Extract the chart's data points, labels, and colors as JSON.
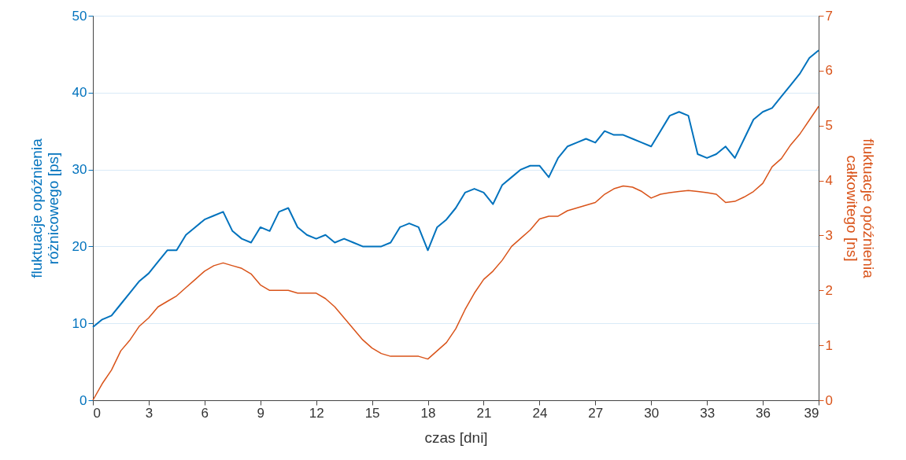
{
  "chart_data": {
    "type": "line",
    "xlabel": "czas [dni]",
    "ylabel": "fluktuacje opóźnienia\nróżnicowego [ps]",
    "y2label": "fluktuacje opóźnienia\ncałkowitego [ns]",
    "x": [
      0,
      0.5,
      1,
      1.5,
      2,
      2.5,
      3,
      3.5,
      4,
      4.5,
      5,
      5.5,
      6,
      6.5,
      7,
      7.5,
      8,
      8.5,
      9,
      9.5,
      10,
      10.5,
      11,
      11.5,
      12,
      12.5,
      13,
      13.5,
      14,
      14.5,
      15,
      15.5,
      16,
      16.5,
      17,
      17.5,
      18,
      18.5,
      19,
      19.5,
      20,
      20.5,
      21,
      21.5,
      22,
      22.5,
      23,
      23.5,
      24,
      24.5,
      25,
      25.5,
      26,
      26.5,
      27,
      27.5,
      28,
      28.5,
      29,
      29.5,
      30,
      30.5,
      31,
      31.5,
      32,
      32.5,
      33,
      33.5,
      34,
      34.5,
      35,
      35.5,
      36,
      36.5,
      37,
      37.5,
      38,
      38.5,
      39
    ],
    "series": [
      {
        "color": "#0072bd",
        "axis": "y",
        "values": [
          9.5,
          10.5,
          11,
          12.5,
          14,
          15.5,
          16.5,
          18,
          19.5,
          19.5,
          21.5,
          22.5,
          23.5,
          24,
          24.5,
          22,
          21,
          20.5,
          22.5,
          22,
          24.5,
          25,
          22.5,
          21.5,
          21,
          21.5,
          20.5,
          21,
          20.5,
          20,
          20,
          20,
          20.5,
          22.5,
          23,
          22.5,
          19.5,
          22.5,
          23.5,
          25,
          27,
          27.5,
          27,
          25.5,
          28,
          29,
          30,
          30.5,
          30.5,
          29,
          31.5,
          33,
          33.5,
          34,
          33.5,
          35,
          34.5,
          34.5,
          34,
          33.5,
          33,
          35,
          37,
          37.5,
          37,
          32,
          31.5,
          32,
          33,
          31.5,
          34,
          36.5,
          37.5,
          38,
          39.5,
          41,
          42.5,
          44.5,
          45.5
        ]
      },
      {
        "color": "#d95319",
        "axis": "y2",
        "values": [
          0,
          0.3,
          0.55,
          0.9,
          1.1,
          1.35,
          1.5,
          1.7,
          1.8,
          1.9,
          2.05,
          2.2,
          2.35,
          2.45,
          2.5,
          2.45,
          2.4,
          2.3,
          2.1,
          2,
          2,
          2,
          1.95,
          1.95,
          1.95,
          1.85,
          1.7,
          1.5,
          1.3,
          1.1,
          0.95,
          0.85,
          0.8,
          0.8,
          0.8,
          0.8,
          0.75,
          0.9,
          1.05,
          1.3,
          1.65,
          1.95,
          2.2,
          2.35,
          2.55,
          2.8,
          2.95,
          3.1,
          3.3,
          3.35,
          3.35,
          3.45,
          3.5,
          3.55,
          3.6,
          3.75,
          3.85,
          3.9,
          3.88,
          3.8,
          3.68,
          3.75,
          3.78,
          3.8,
          3.82,
          3.8,
          3.78,
          3.75,
          3.6,
          3.62,
          3.7,
          3.8,
          3.95,
          4.25,
          4.4,
          4.65,
          4.85,
          5.1,
          5.35
        ]
      }
    ],
    "xlim": [
      0,
      39
    ],
    "xticks": [
      0,
      3,
      6,
      9,
      12,
      15,
      18,
      21,
      24,
      27,
      30,
      33,
      36,
      39
    ],
    "ylim": [
      0,
      50
    ],
    "yticks": [
      0,
      10,
      20,
      30,
      40,
      50
    ],
    "y2lim": [
      0,
      7
    ],
    "y2ticks": [
      0,
      1,
      2,
      3,
      4,
      5,
      6,
      7
    ],
    "grid": "y"
  }
}
